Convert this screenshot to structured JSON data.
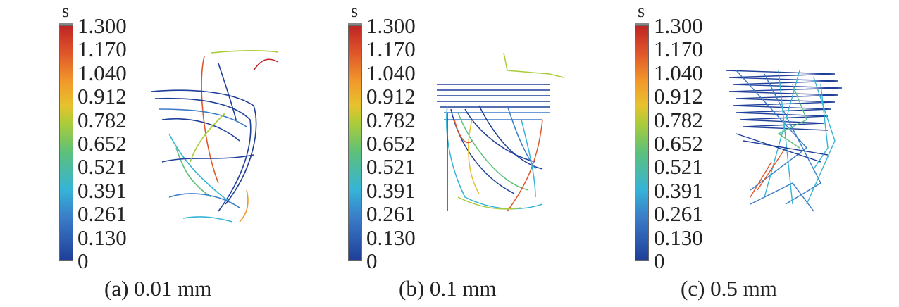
{
  "colorbar": {
    "unit": "s",
    "ticks": [
      "1.300",
      "1.170",
      "1.040",
      "0.912",
      "0.782",
      "0.652",
      "0.521",
      "0.391",
      "0.261",
      "0.130",
      "0"
    ]
  },
  "panels": [
    {
      "caption": "(a) 0.01 mm"
    },
    {
      "caption": "(b) 0.1 mm"
    },
    {
      "caption": "(c) 0.5 mm"
    }
  ]
}
